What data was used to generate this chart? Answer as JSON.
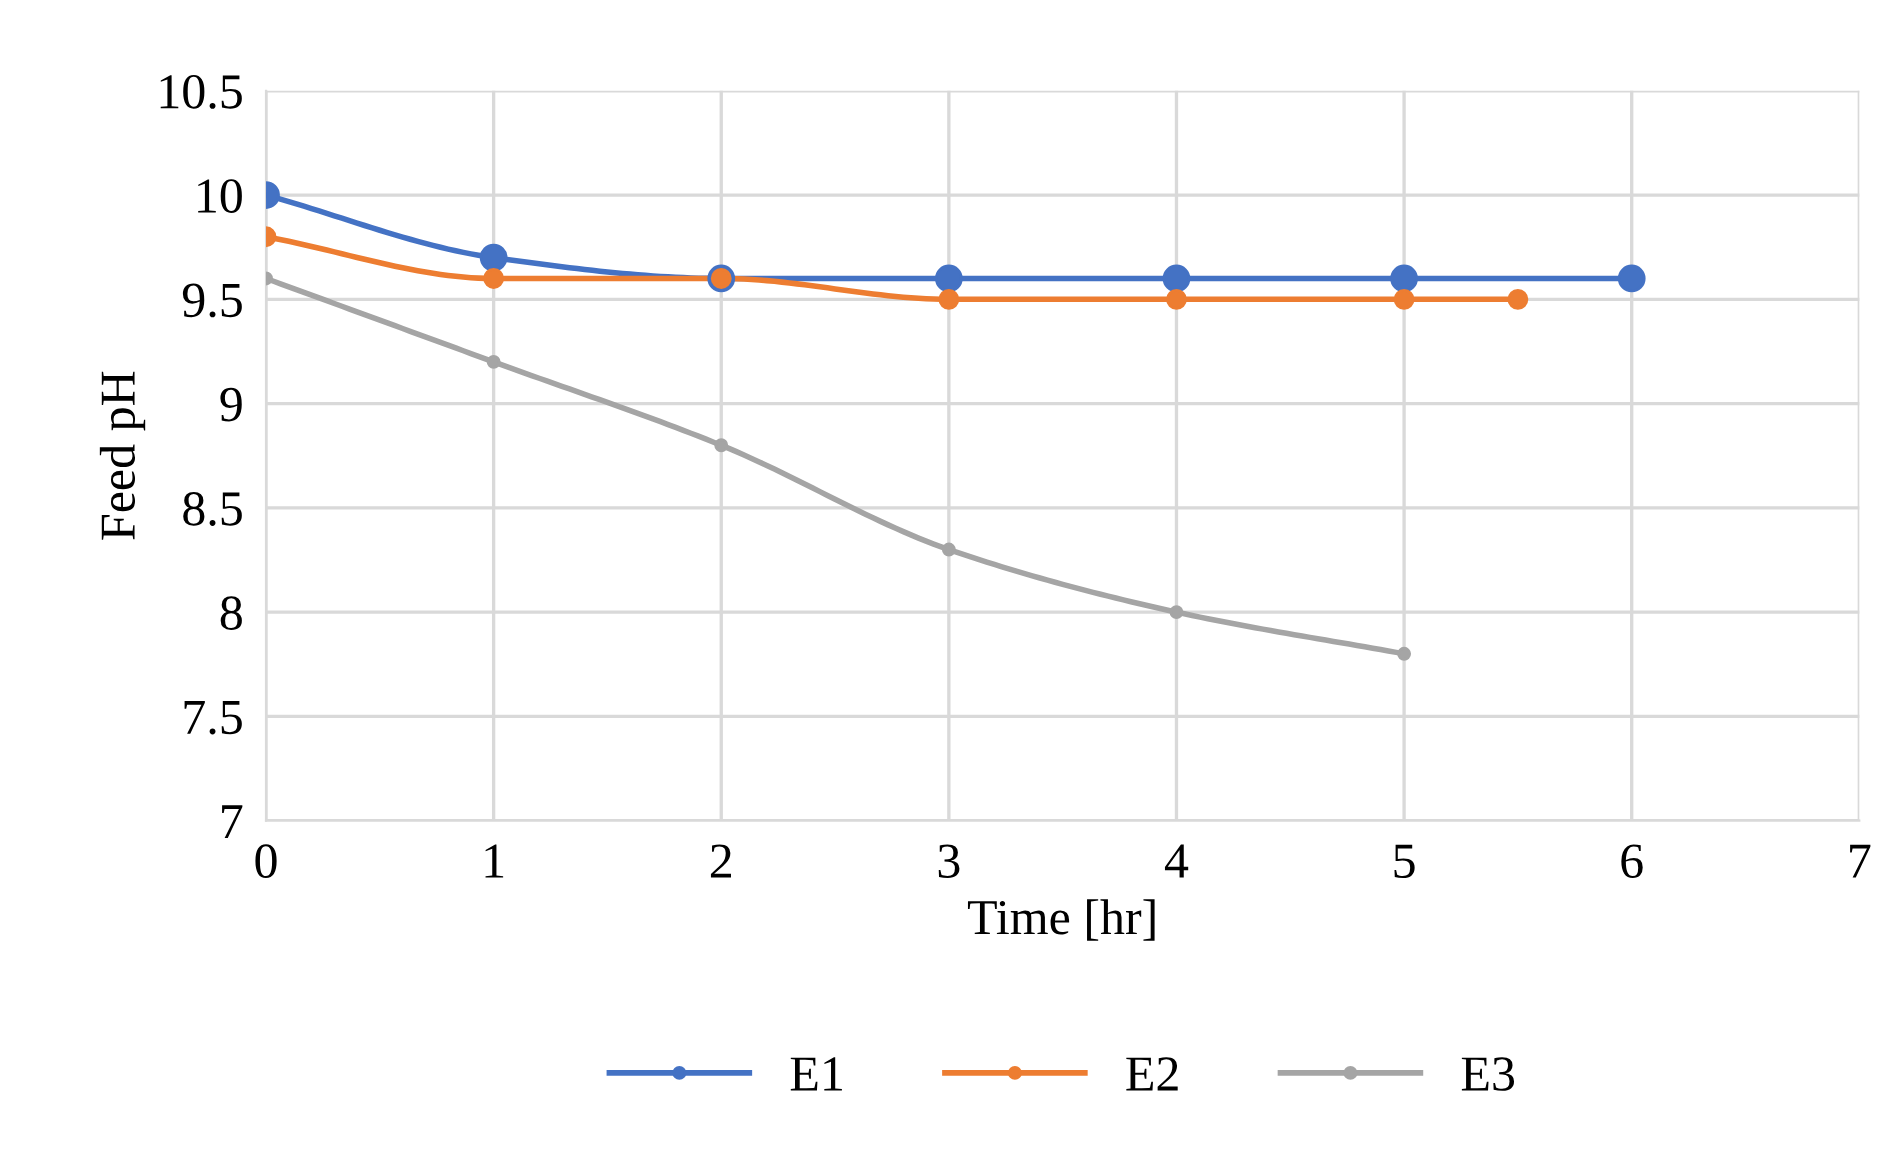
{
  "chart_data": {
    "type": "line",
    "xlabel": "Time [hr]",
    "ylabel": "Feed pH",
    "xlim": [
      0,
      7
    ],
    "xticks": [
      0,
      1,
      2,
      3,
      4,
      5,
      6,
      7
    ],
    "ylim": [
      7,
      10.5
    ],
    "yticks": [
      7,
      7.5,
      8,
      8.5,
      9,
      9.5,
      10,
      10.5
    ],
    "grid": true,
    "legend": "bottom",
    "marker": "circle",
    "line_style": "solid",
    "series": [
      {
        "name": "E1",
        "color": "#4472c4",
        "x": [
          0,
          1,
          2,
          3,
          4,
          5,
          6
        ],
        "values": [
          10,
          9.7,
          9.6,
          9.6,
          9.6,
          9.6,
          9.6
        ]
      },
      {
        "name": "E2",
        "color": "#ed7d31",
        "x": [
          0,
          1,
          2,
          3,
          4,
          5,
          5.5
        ],
        "values": [
          9.8,
          9.6,
          9.6,
          9.5,
          9.5,
          9.5,
          9.5
        ]
      },
      {
        "name": "E3",
        "color": "#a5a5a5",
        "x": [
          0,
          1,
          2,
          3,
          4,
          5
        ],
        "values": [
          9.6,
          9.2,
          8.8,
          8.3,
          8.0,
          7.8
        ]
      }
    ]
  }
}
